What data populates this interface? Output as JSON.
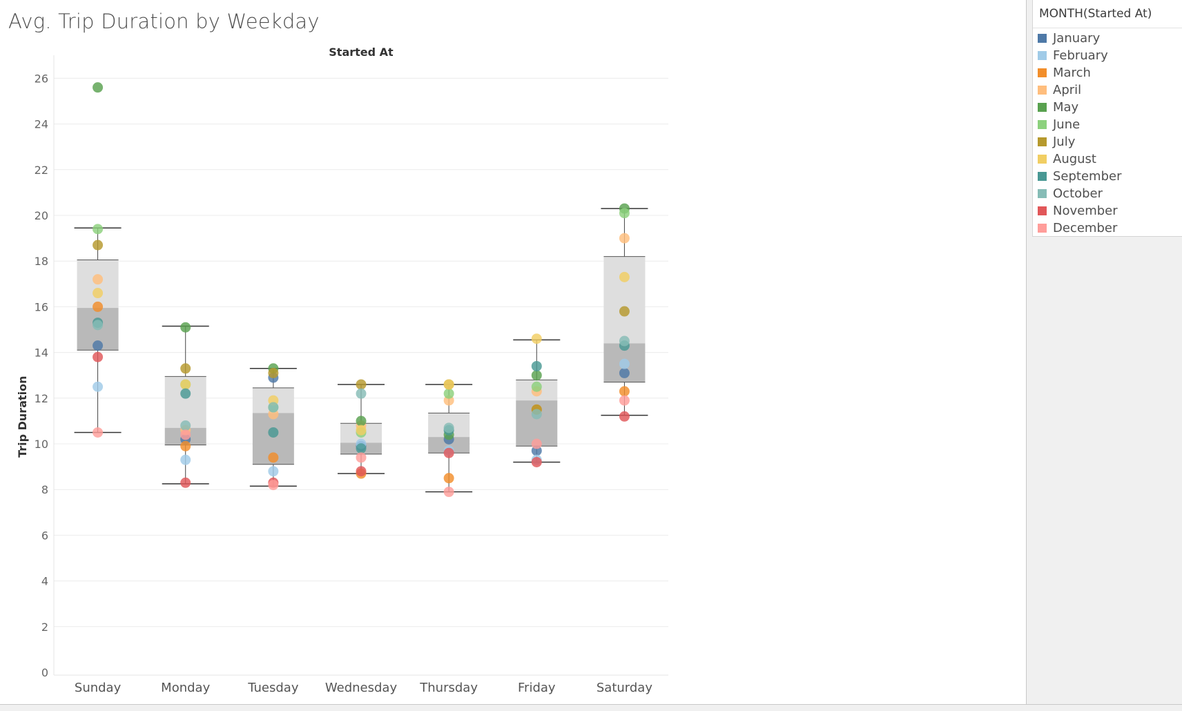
{
  "title": "Avg. Trip Duration by Weekday",
  "legend": {
    "title": "MONTH(Started At)",
    "items": [
      {
        "label": "January",
        "color": "#4e79a7"
      },
      {
        "label": "February",
        "color": "#a0cbe8"
      },
      {
        "label": "March",
        "color": "#f28e2b"
      },
      {
        "label": "April",
        "color": "#ffbe7d"
      },
      {
        "label": "May",
        "color": "#59a14f"
      },
      {
        "label": "June",
        "color": "#8cd17d"
      },
      {
        "label": "July",
        "color": "#b6992d"
      },
      {
        "label": "August",
        "color": "#f1ce63"
      },
      {
        "label": "September",
        "color": "#499894"
      },
      {
        "label": "October",
        "color": "#86bcb6"
      },
      {
        "label": "November",
        "color": "#e15759"
      },
      {
        "label": "December",
        "color": "#ff9d9a"
      }
    ]
  },
  "chart_data": {
    "type": "box-plot with jittered points",
    "title": "Avg. Trip Duration by Weekday",
    "column_header": "Started At",
    "ylabel": "Trip Duration",
    "ylim": [
      0,
      26.5
    ],
    "yticks": [
      0,
      2,
      4,
      6,
      8,
      10,
      12,
      14,
      16,
      18,
      20,
      22,
      24,
      26
    ],
    "grid": true,
    "legend_position": "right",
    "categories": [
      "Sunday",
      "Monday",
      "Tuesday",
      "Wednesday",
      "Thursday",
      "Friday",
      "Saturday"
    ],
    "boxes": [
      {
        "min": 10.5,
        "q1": 14.1,
        "median": 15.95,
        "q3": 18.05,
        "max": 19.45
      },
      {
        "min": 8.25,
        "q1": 9.95,
        "median": 10.7,
        "q3": 12.95,
        "max": 15.15
      },
      {
        "min": 8.15,
        "q1": 9.1,
        "median": 11.35,
        "q3": 12.45,
        "max": 13.3
      },
      {
        "min": 8.7,
        "q1": 9.55,
        "median": 10.05,
        "q3": 10.9,
        "max": 12.6
      },
      {
        "min": 7.9,
        "q1": 9.6,
        "median": 10.3,
        "q3": 11.35,
        "max": 12.6
      },
      {
        "min": 9.2,
        "q1": 9.9,
        "median": 11.9,
        "q3": 12.8,
        "max": 14.55
      },
      {
        "min": 11.25,
        "q1": 12.7,
        "median": 14.4,
        "q3": 18.2,
        "max": 20.3
      }
    ],
    "series": [
      {
        "name": "January",
        "values": [
          14.3,
          10.2,
          12.9,
          9.9,
          10.2,
          9.7,
          13.1
        ]
      },
      {
        "name": "February",
        "values": [
          12.5,
          9.3,
          8.8,
          10.0,
          9.7,
          9.3,
          13.5
        ]
      },
      {
        "name": "March",
        "values": [
          16.0,
          9.9,
          9.4,
          8.7,
          8.5,
          11.5,
          12.3
        ]
      },
      {
        "name": "April",
        "values": [
          17.2,
          10.6,
          11.3,
          10.8,
          11.9,
          12.3,
          19.0
        ]
      },
      {
        "name": "May",
        "values": [
          25.6,
          15.1,
          13.3,
          11.0,
          10.4,
          13.0,
          20.3
        ]
      },
      {
        "name": "June",
        "values": [
          19.4,
          12.6,
          11.6,
          10.5,
          12.2,
          12.5,
          20.1
        ]
      },
      {
        "name": "July",
        "values": [
          18.7,
          13.3,
          13.1,
          12.6,
          12.6,
          11.5,
          15.8
        ]
      },
      {
        "name": "August",
        "values": [
          16.6,
          12.6,
          11.9,
          10.6,
          12.6,
          14.6,
          17.3
        ]
      },
      {
        "name": "September",
        "values": [
          15.3,
          12.2,
          10.5,
          9.8,
          10.6,
          13.4,
          14.3
        ]
      },
      {
        "name": "October",
        "values": [
          15.2,
          10.8,
          11.6,
          12.2,
          10.7,
          11.3,
          14.5
        ]
      },
      {
        "name": "November",
        "values": [
          13.8,
          8.3,
          8.3,
          8.8,
          9.6,
          9.2,
          11.2
        ]
      },
      {
        "name": "December",
        "values": [
          10.5,
          10.4,
          8.2,
          9.4,
          7.9,
          10.0,
          11.9
        ]
      }
    ]
  }
}
